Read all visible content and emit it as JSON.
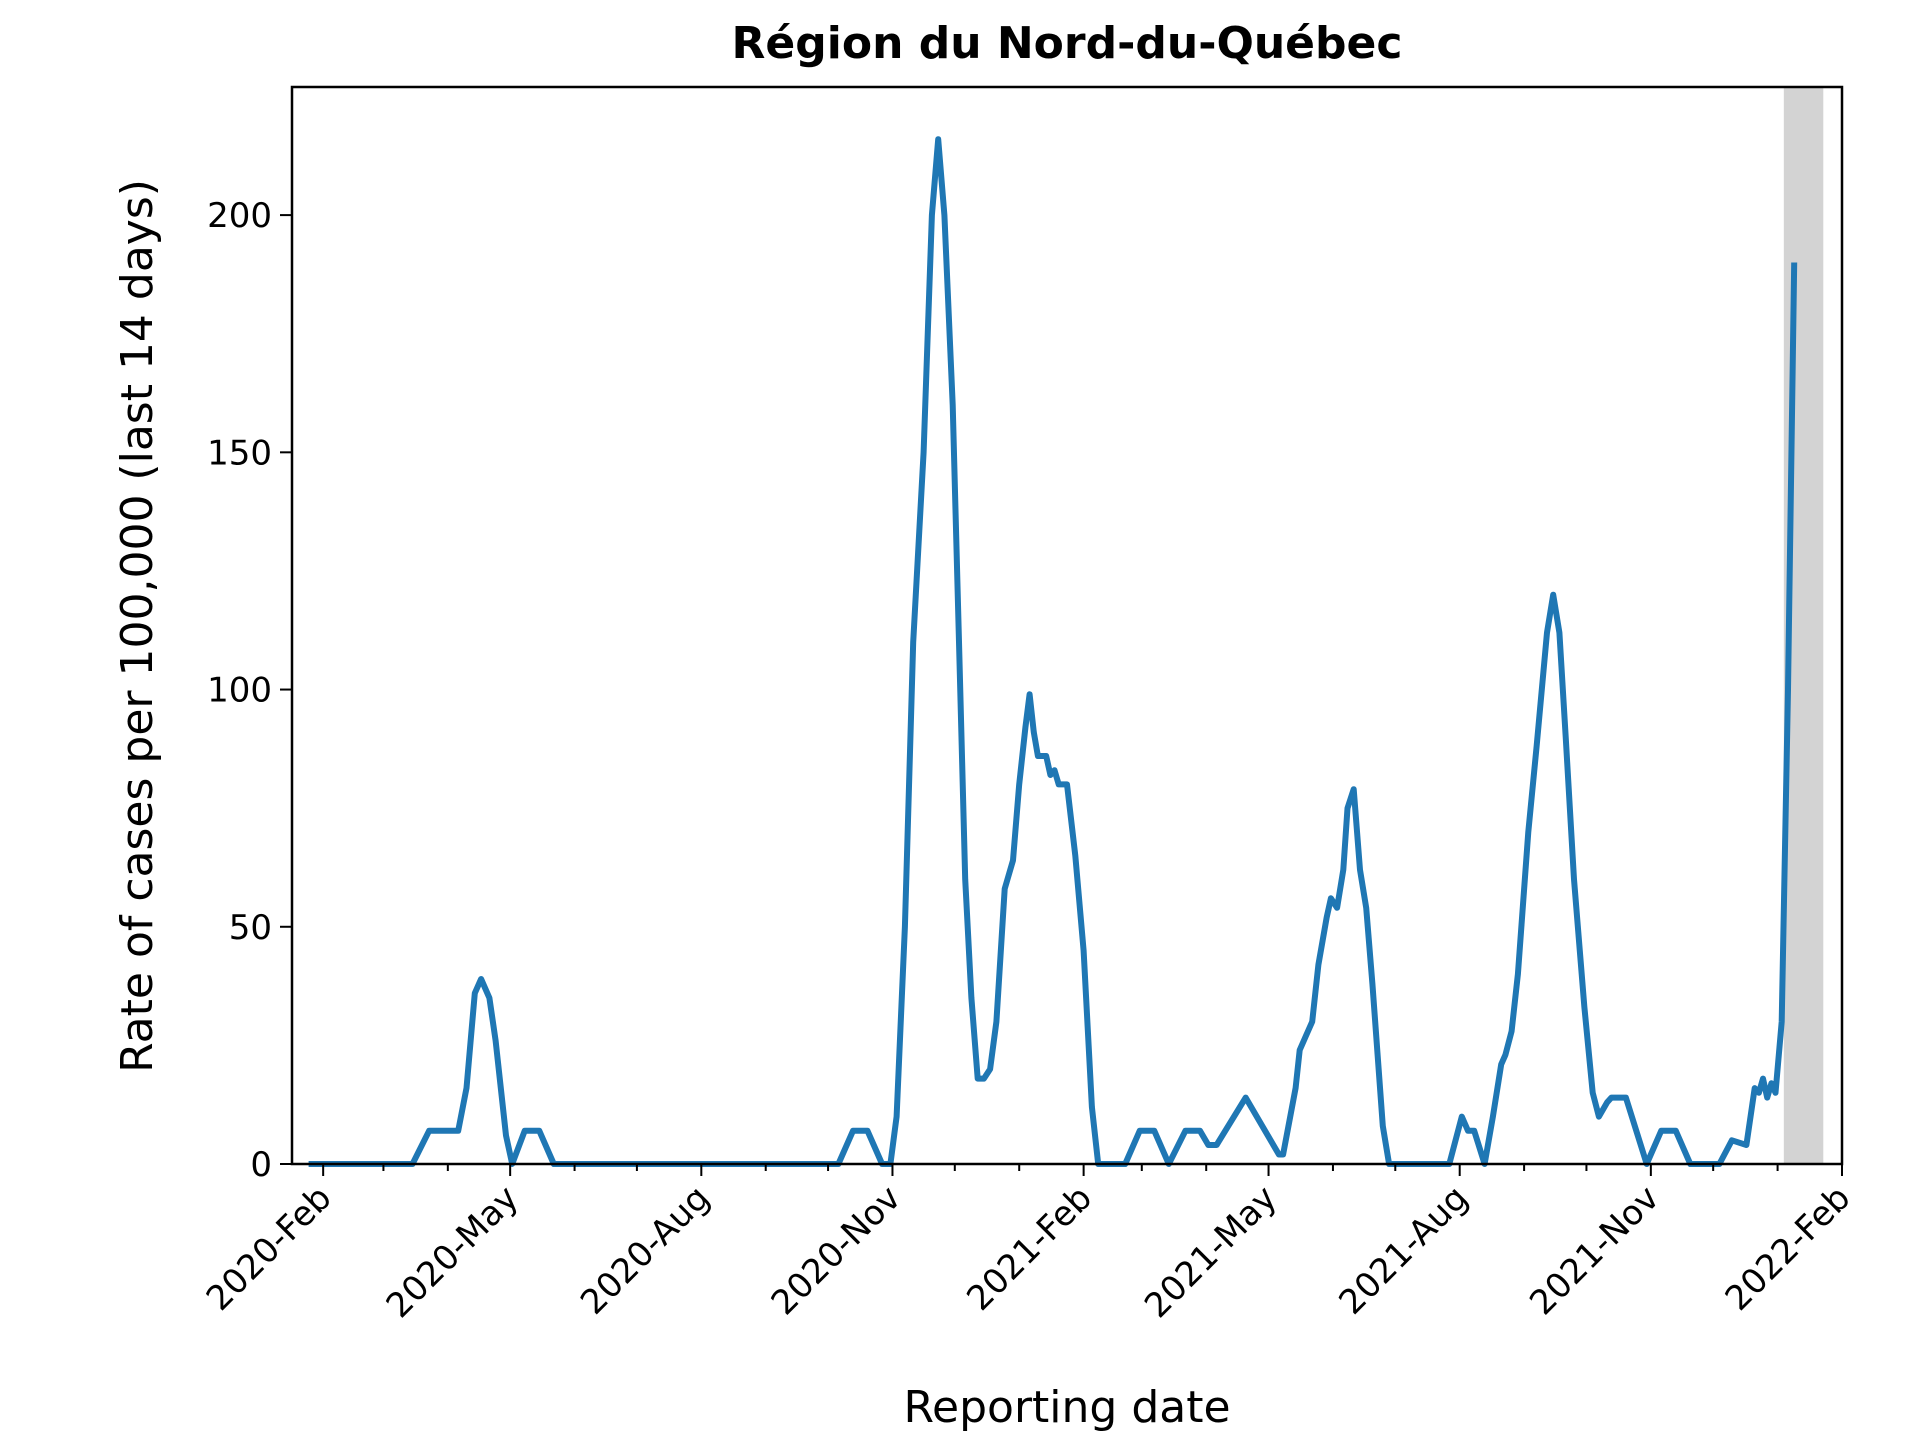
{
  "chart_data": {
    "type": "line",
    "title": "Région du Nord-du-Québec",
    "xlabel": "Reporting date",
    "ylabel": "Rate of cases per 100,000 (last 14 days)",
    "xlim": [
      "2020-01-17",
      "2022-02-01"
    ],
    "ylim": [
      0,
      227
    ],
    "x_ticks": [
      {
        "date": "2020-02-01",
        "label": "2020-Feb"
      },
      {
        "date": "2020-05-01",
        "label": "2020-May"
      },
      {
        "date": "2020-08-01",
        "label": "2020-Aug"
      },
      {
        "date": "2020-11-01",
        "label": "2020-Nov"
      },
      {
        "date": "2021-02-01",
        "label": "2021-Feb"
      },
      {
        "date": "2021-05-01",
        "label": "2021-May"
      },
      {
        "date": "2021-08-01",
        "label": "2021-Aug"
      },
      {
        "date": "2021-11-01",
        "label": "2021-Nov"
      },
      {
        "date": "2022-02-01",
        "label": "2022-Feb"
      }
    ],
    "minor_ticks": [
      "2020-03-01",
      "2020-04-01",
      "2020-06-01",
      "2020-07-01",
      "2020-09-01",
      "2020-10-01",
      "2020-12-01",
      "2021-01-01",
      "2021-03-01",
      "2021-04-01",
      "2021-06-01",
      "2021-07-01",
      "2021-09-01",
      "2021-10-01",
      "2021-12-01",
      "2022-01-01"
    ],
    "y_ticks": [
      0,
      50,
      100,
      150,
      200
    ],
    "grid": false,
    "shaded_region": {
      "start": "2022-01-04",
      "end": "2022-01-23",
      "color": "#d3d3d3"
    },
    "series": [
      {
        "color": "#1f77b4",
        "points": [
          [
            "2020-01-25",
            0
          ],
          [
            "2020-03-15",
            0
          ],
          [
            "2020-03-23",
            7
          ],
          [
            "2020-04-06",
            7
          ],
          [
            "2020-04-10",
            16
          ],
          [
            "2020-04-14",
            36
          ],
          [
            "2020-04-17",
            39
          ],
          [
            "2020-04-21",
            35
          ],
          [
            "2020-04-24",
            26
          ],
          [
            "2020-04-29",
            6
          ],
          [
            "2020-05-02",
            0
          ],
          [
            "2020-05-08",
            7
          ],
          [
            "2020-05-15",
            7
          ],
          [
            "2020-05-22",
            0
          ],
          [
            "2020-10-06",
            0
          ],
          [
            "2020-10-13",
            7
          ],
          [
            "2020-10-20",
            7
          ],
          [
            "2020-10-27",
            0
          ],
          [
            "2020-10-31",
            0
          ],
          [
            "2020-11-03",
            10
          ],
          [
            "2020-11-07",
            50
          ],
          [
            "2020-11-11",
            110
          ],
          [
            "2020-11-16",
            150
          ],
          [
            "2020-11-20",
            200
          ],
          [
            "2020-11-23",
            216
          ],
          [
            "2020-11-26",
            200
          ],
          [
            "2020-11-30",
            160
          ],
          [
            "2020-12-03",
            110
          ],
          [
            "2020-12-06",
            60
          ],
          [
            "2020-12-09",
            35
          ],
          [
            "2020-12-12",
            18
          ],
          [
            "2020-12-15",
            18
          ],
          [
            "2020-12-18",
            20
          ],
          [
            "2020-12-21",
            30
          ],
          [
            "2020-12-25",
            58
          ],
          [
            "2020-12-29",
            64
          ],
          [
            "2021-01-01",
            80
          ],
          [
            "2021-01-04",
            92
          ],
          [
            "2021-01-06",
            99
          ],
          [
            "2021-01-08",
            91
          ],
          [
            "2021-01-10",
            86
          ],
          [
            "2021-01-14",
            86
          ],
          [
            "2021-01-16",
            82
          ],
          [
            "2021-01-18",
            83
          ],
          [
            "2021-01-20",
            80
          ],
          [
            "2021-01-24",
            80
          ],
          [
            "2021-01-28",
            65
          ],
          [
            "2021-02-01",
            45
          ],
          [
            "2021-02-05",
            12
          ],
          [
            "2021-02-08",
            0
          ],
          [
            "2021-02-21",
            0
          ],
          [
            "2021-02-28",
            7
          ],
          [
            "2021-03-07",
            7
          ],
          [
            "2021-03-14",
            0
          ],
          [
            "2021-03-22",
            7
          ],
          [
            "2021-03-29",
            7
          ],
          [
            "2021-04-02",
            4
          ],
          [
            "2021-04-06",
            4
          ],
          [
            "2021-04-20",
            14
          ],
          [
            "2021-05-06",
            2
          ],
          [
            "2021-05-08",
            2
          ],
          [
            "2021-05-14",
            16
          ],
          [
            "2021-05-16",
            24
          ],
          [
            "2021-05-19",
            27
          ],
          [
            "2021-05-22",
            30
          ],
          [
            "2021-05-25",
            42
          ],
          [
            "2021-05-29",
            52
          ],
          [
            "2021-05-31",
            56
          ],
          [
            "2021-06-03",
            54
          ],
          [
            "2021-06-06",
            62
          ],
          [
            "2021-06-08",
            75
          ],
          [
            "2021-06-11",
            79
          ],
          [
            "2021-06-14",
            62
          ],
          [
            "2021-06-17",
            54
          ],
          [
            "2021-06-20",
            38
          ],
          [
            "2021-06-25",
            8
          ],
          [
            "2021-06-28",
            0
          ],
          [
            "2021-07-27",
            0
          ],
          [
            "2021-08-02",
            10
          ],
          [
            "2021-08-05",
            7
          ],
          [
            "2021-08-08",
            7
          ],
          [
            "2021-08-13",
            0
          ],
          [
            "2021-08-17",
            10
          ],
          [
            "2021-08-21",
            21
          ],
          [
            "2021-08-23",
            23
          ],
          [
            "2021-08-26",
            28
          ],
          [
            "2021-08-29",
            40
          ],
          [
            "2021-09-03",
            70
          ],
          [
            "2021-09-07",
            88
          ],
          [
            "2021-09-12",
            112
          ],
          [
            "2021-09-15",
            120
          ],
          [
            "2021-09-18",
            112
          ],
          [
            "2021-09-21",
            90
          ],
          [
            "2021-09-25",
            60
          ],
          [
            "2021-09-30",
            33
          ],
          [
            "2021-10-04",
            15
          ],
          [
            "2021-10-07",
            10
          ],
          [
            "2021-10-11",
            13
          ],
          [
            "2021-10-13",
            14
          ],
          [
            "2021-10-20",
            14
          ],
          [
            "2021-10-30",
            0
          ],
          [
            "2021-11-06",
            7
          ],
          [
            "2021-11-13",
            7
          ],
          [
            "2021-11-20",
            0
          ],
          [
            "2021-12-04",
            0
          ],
          [
            "2021-12-10",
            5
          ],
          [
            "2021-12-17",
            4
          ],
          [
            "2021-12-21",
            16
          ],
          [
            "2021-12-23",
            15
          ],
          [
            "2021-12-25",
            18
          ],
          [
            "2021-12-27",
            14
          ],
          [
            "2021-12-29",
            17
          ],
          [
            "2021-12-31",
            15
          ],
          [
            "2022-01-03",
            30
          ],
          [
            "2022-01-06",
            100
          ],
          [
            "2022-01-09",
            190
          ]
        ]
      }
    ]
  }
}
